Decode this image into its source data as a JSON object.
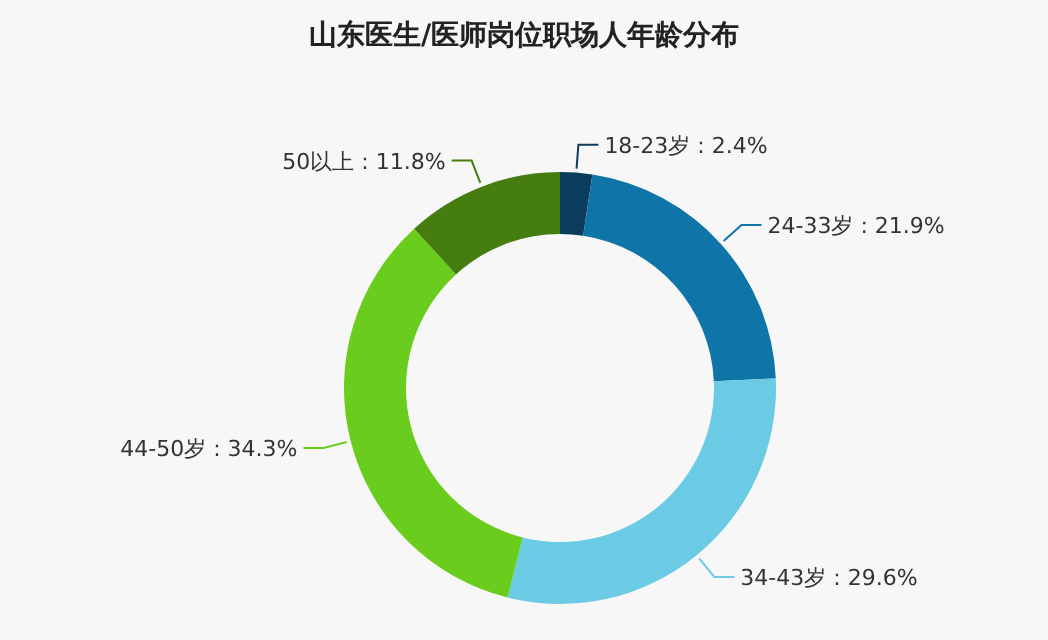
{
  "chart_data": {
    "type": "donut",
    "title": "山东医生/医师岗位职场人年龄分布",
    "categories": [
      "18-23岁",
      "24-33岁",
      "34-43岁",
      "44-50岁",
      "50以上"
    ],
    "values": [
      2.4,
      21.9,
      29.6,
      34.3,
      11.8
    ],
    "value_labels": [
      "2.4%",
      "21.9%",
      "29.6%",
      "34.3%",
      "11.8%"
    ],
    "colors": [
      "#0d3d5e",
      "#0f75a8",
      "#6ccbe4",
      "#6acd1e",
      "#457d10"
    ]
  }
}
